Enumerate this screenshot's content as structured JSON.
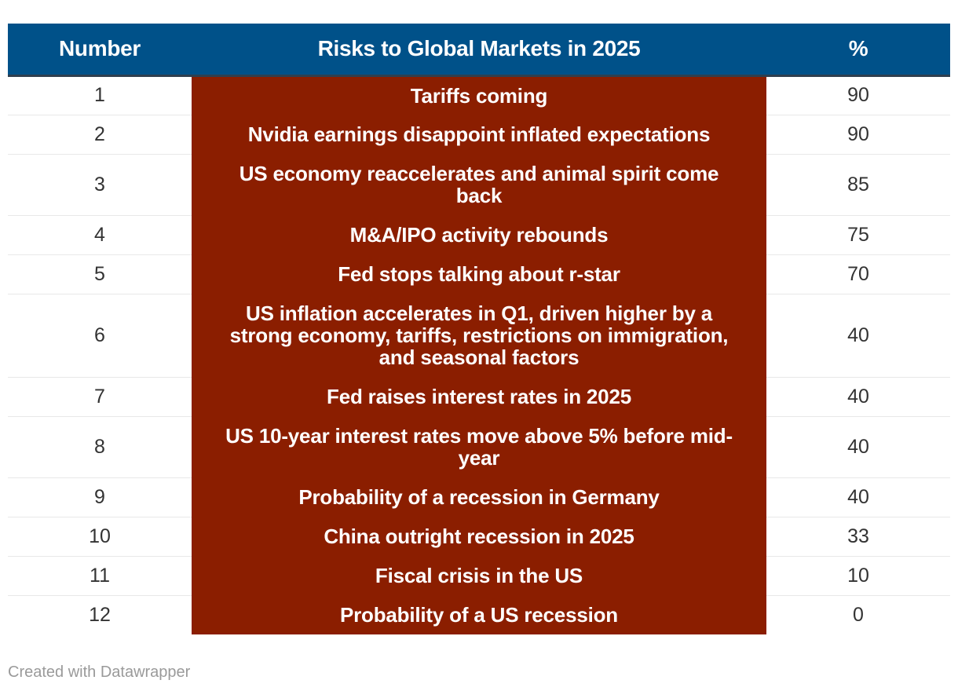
{
  "colors": {
    "header_bg": "#005189",
    "highlight_bg": "#8b1e00",
    "row_divider": "#e8e8e8",
    "header_text": "#ffffff"
  },
  "chart_data": {
    "type": "table",
    "columns": [
      "Number",
      "Risks to Global Markets in 2025",
      "%"
    ],
    "rows": [
      [
        "1",
        "Tariffs coming",
        "90"
      ],
      [
        "2",
        "Nvidia earnings disappoint inflated expectations",
        "90"
      ],
      [
        "3",
        "US economy reaccelerates and animal spirit come back",
        "85"
      ],
      [
        "4",
        "M&A/IPO activity rebounds",
        "75"
      ],
      [
        "5",
        "Fed stops talking about r-star",
        "70"
      ],
      [
        "6",
        "US inflation accelerates in Q1, driven higher by a strong economy, tariffs, restrictions on immigration, and seasonal factors",
        "40"
      ],
      [
        "7",
        "Fed raises interest rates in 2025",
        "40"
      ],
      [
        "8",
        "US 10-year interest rates move above 5% before mid-year",
        "40"
      ],
      [
        "9",
        "Probability of a recession in Germany",
        "40"
      ],
      [
        "10",
        "China outright recession in 2025",
        "33"
      ],
      [
        "11",
        "Fiscal crisis in the US",
        "10"
      ],
      [
        "12",
        "Probability of a US recession",
        "0"
      ]
    ]
  },
  "footer": "Created with Datawrapper"
}
